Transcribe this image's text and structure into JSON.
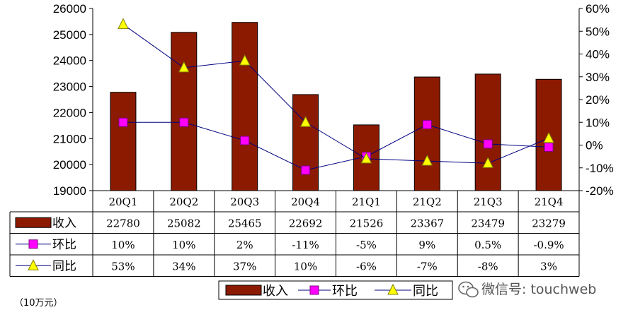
{
  "chart_data": {
    "type": "bar",
    "categories": [
      "20Q1",
      "20Q2",
      "20Q3",
      "20Q4",
      "21Q1",
      "21Q2",
      "21Q3",
      "21Q4"
    ],
    "series": [
      {
        "name": "收入",
        "kind": "bar",
        "axis": "left",
        "color": "#8B1A00",
        "values": [
          22780,
          25082,
          25465,
          22692,
          21526,
          23367,
          23479,
          23279
        ],
        "labels": [
          "22780",
          "25082",
          "25465",
          "22692",
          "21526",
          "23367",
          "23479",
          "23279"
        ]
      },
      {
        "name": "环比",
        "kind": "line",
        "axis": "right",
        "marker": "square",
        "color": "#000080",
        "marker_color": "#FF00FF",
        "values": [
          10,
          10,
          2,
          -11,
          -5,
          9,
          0.5,
          -0.9
        ],
        "labels": [
          "10%",
          "10%",
          "2%",
          "-11%",
          "-5%",
          "9%",
          "0.5%",
          "-0.9%"
        ]
      },
      {
        "name": "同比",
        "kind": "line",
        "axis": "right",
        "marker": "triangle",
        "color": "#000080",
        "marker_color": "#FFFF00",
        "values": [
          53,
          34,
          37,
          10,
          -6,
          -7,
          -8,
          3
        ],
        "labels": [
          "53%",
          "34%",
          "37%",
          "10%",
          "-6%",
          "-7%",
          "-8%",
          "3%"
        ]
      }
    ],
    "ylim_left": [
      19000,
      26000
    ],
    "yticks_left": [
      "19000",
      "20000",
      "21000",
      "22000",
      "23000",
      "24000",
      "25000",
      "26000"
    ],
    "ylim_right": [
      -20,
      60
    ],
    "yticks_right": [
      "-20%",
      "-10%",
      "0%",
      "10%",
      "20%",
      "30%",
      "40%",
      "50%",
      "60%"
    ],
    "legend_position": "bottom-center",
    "unit_note": "（10万元）",
    "grid": false
  },
  "watermark": "微信号: touchweb",
  "colors": {
    "bar": "#8B1A00",
    "line": "#000080",
    "square": "#FF00FF",
    "triangle": "#FFFF00"
  }
}
